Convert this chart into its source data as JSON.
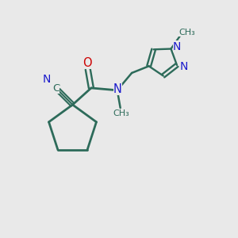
{
  "bg_color": "#e9e9e9",
  "bond_color": "#2d6b5a",
  "N_color": "#1a1acc",
  "O_color": "#cc0000",
  "figsize": [
    3.0,
    3.0
  ],
  "dpi": 100,
  "xlim": [
    0,
    10
  ],
  "ylim": [
    0,
    10
  ]
}
